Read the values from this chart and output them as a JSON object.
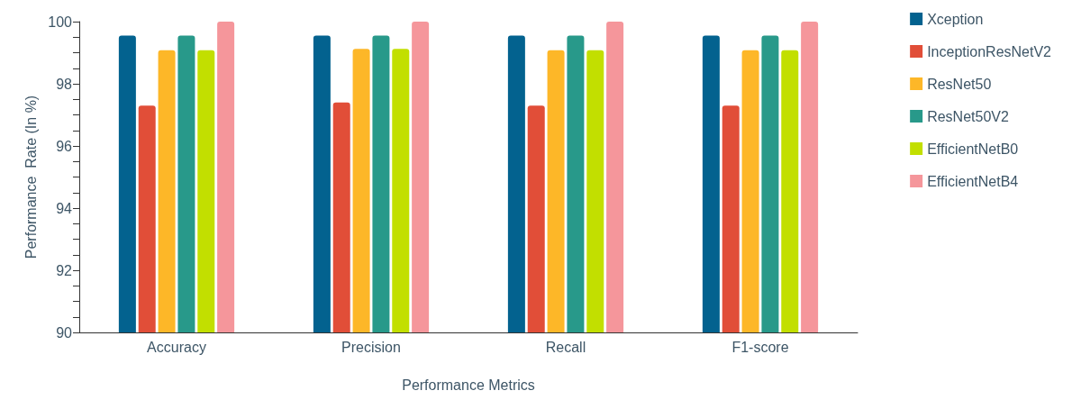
{
  "chart_data": {
    "type": "bar",
    "xlabel": "Performance Metrics",
    "ylabel": "Performance  Rate (In %)",
    "categories": [
      "Accuracy",
      "Precision",
      "Recall",
      "F1-score"
    ],
    "series": [
      {
        "name": "Xception",
        "color": "#03628f",
        "values": [
          99.55,
          99.55,
          99.55,
          99.55
        ]
      },
      {
        "name": "InceptionResNetV2",
        "color": "#e14e38",
        "values": [
          97.3,
          97.4,
          97.3,
          97.3
        ]
      },
      {
        "name": "ResNet50",
        "color": "#fdb728",
        "values": [
          99.08,
          99.12,
          99.08,
          99.08
        ]
      },
      {
        "name": "ResNet50V2",
        "color": "#28998a",
        "values": [
          99.55,
          99.55,
          99.55,
          99.55
        ]
      },
      {
        "name": "EfficientNetB0",
        "color": "#c2df00",
        "values": [
          99.08,
          99.12,
          99.08,
          99.08
        ]
      },
      {
        "name": "EfficientNetB4",
        "color": "#f5969b",
        "values": [
          100,
          100,
          100,
          100
        ]
      }
    ],
    "ylim": [
      90,
      100
    ],
    "yticks": [
      90,
      {
        "value": 90.5,
        "label": null
      },
      92,
      {
        "value": 91,
        "label": null
      },
      {
        "value": 91.5,
        "label": null
      },
      {
        "value": 92.5,
        "label": null
      },
      {
        "value": 93,
        "label": null
      },
      {
        "value": 93.5,
        "label": null
      },
      94,
      {
        "value": 94.5,
        "label": null
      },
      {
        "value": 95,
        "label": null
      },
      {
        "value": 95.5,
        "label": null
      },
      96,
      {
        "value": 96.5,
        "label": null
      },
      {
        "value": 97,
        "label": null
      },
      {
        "value": 97.5,
        "label": null
      },
      98,
      {
        "value": 98.5,
        "label": null
      },
      {
        "value": 99,
        "label": null
      },
      {
        "value": 99.5,
        "label": null
      },
      100
    ],
    "grid": false,
    "legend": "top right"
  }
}
